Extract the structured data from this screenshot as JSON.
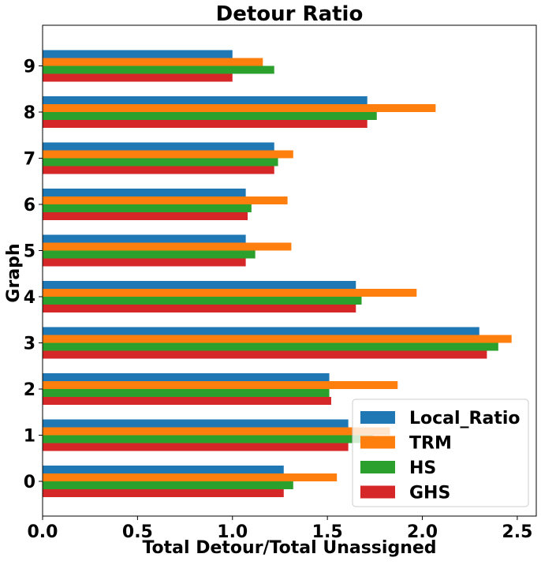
{
  "chart_data": {
    "type": "bar",
    "orientation": "horizontal",
    "title": "Detour Ratio",
    "xlabel": "Total Detour/Total Unassigned",
    "ylabel": "Graph",
    "categories": [
      "0",
      "1",
      "2",
      "3",
      "4",
      "5",
      "6",
      "7",
      "8",
      "9"
    ],
    "xlim": [
      0,
      2.6
    ],
    "xticks": [
      "0.0",
      "0.5",
      "1.0",
      "1.5",
      "2.0",
      "2.5"
    ],
    "grid": false,
    "legend_position": "lower right",
    "series": [
      {
        "name": "Local_Ratio",
        "color": "#1f77b4",
        "values": [
          1.27,
          1.61,
          1.51,
          2.3,
          1.65,
          1.07,
          1.07,
          1.22,
          1.71,
          1.0
        ]
      },
      {
        "name": "TRM",
        "color": "#ff7f0e",
        "values": [
          1.55,
          1.83,
          1.87,
          2.47,
          1.97,
          1.31,
          1.29,
          1.32,
          2.07,
          1.16
        ]
      },
      {
        "name": "HS",
        "color": "#2ca02c",
        "values": [
          1.32,
          1.74,
          1.51,
          2.4,
          1.68,
          1.12,
          1.1,
          1.24,
          1.76,
          1.22
        ]
      },
      {
        "name": "GHS",
        "color": "#d62728",
        "values": [
          1.27,
          1.61,
          1.52,
          2.34,
          1.65,
          1.07,
          1.08,
          1.22,
          1.71,
          1.0
        ]
      }
    ]
  }
}
